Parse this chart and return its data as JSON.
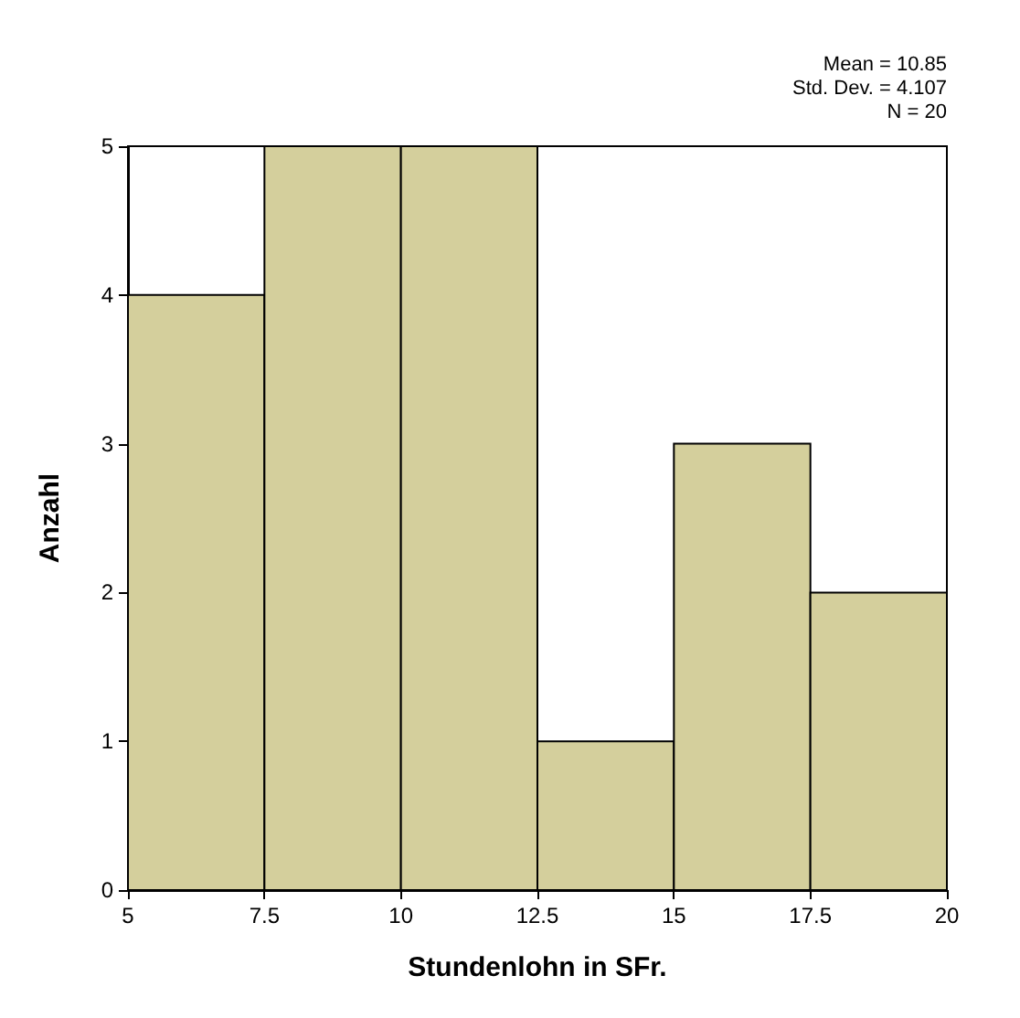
{
  "chart_data": {
    "type": "histogram",
    "xlabel": "Stundenlohn in SFr.",
    "ylabel": "Anzahl",
    "bins": [
      5,
      7.5,
      10,
      12.5,
      15,
      17.5,
      20
    ],
    "values": [
      4,
      5,
      5,
      1,
      3,
      2
    ],
    "color": "#d4cf9c",
    "xlim": [
      5,
      20
    ],
    "xticks": [
      5,
      7.5,
      10,
      12.5,
      15,
      17.5,
      20
    ],
    "ylim": [
      0,
      5
    ],
    "yticks": [
      0,
      1,
      2,
      3,
      4,
      5
    ],
    "grid": false,
    "annotations": [
      "Mean = 10.85",
      "Std. Dev. = 4.107",
      "N = 20"
    ]
  }
}
